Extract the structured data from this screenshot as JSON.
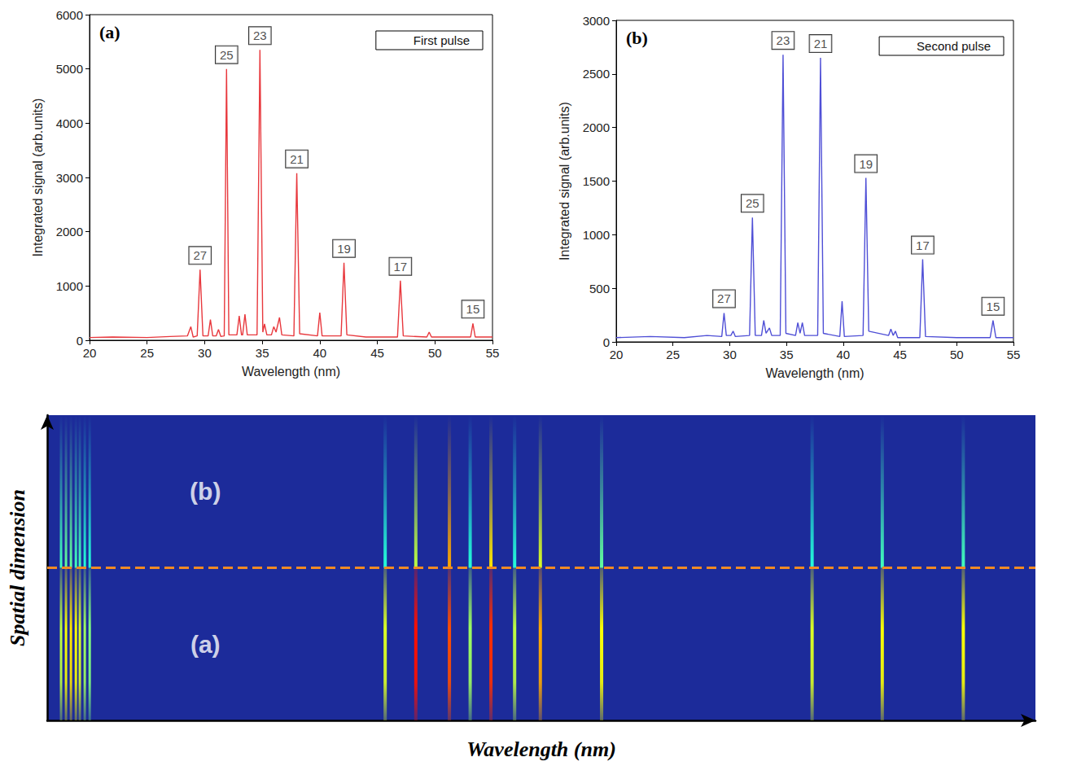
{
  "chart_data": [
    {
      "type": "line",
      "label": "(a)",
      "x_label": "Wavelength (nm)",
      "y_label": "Integrated signal (arb.units)",
      "x": [
        20,
        22,
        25,
        27,
        28.5,
        28.8,
        29.0,
        29.35,
        29.6,
        29.85,
        30.3,
        30.5,
        30.7,
        31.0,
        31.2,
        31.4,
        31.7,
        31.9,
        32.1,
        32.8,
        33.0,
        33.2,
        33.3,
        33.5,
        33.7,
        34.55,
        34.8,
        35.05,
        35.2,
        35.4,
        35.8,
        36.0,
        36.2,
        36.5,
        36.7,
        37.75,
        38.0,
        38.25,
        39.8,
        40.0,
        40.2,
        41.85,
        42.1,
        42.35,
        44.0,
        46.75,
        47.0,
        47.25,
        49.3,
        49.5,
        49.7,
        53.1,
        53.3,
        53.5,
        55
      ],
      "series": [
        {
          "name": "First pulse",
          "color": "#e8383d",
          "values": [
            50,
            60,
            50,
            70,
            80,
            250,
            60,
            80,
            1300,
            80,
            80,
            380,
            80,
            80,
            200,
            70,
            80,
            5000,
            100,
            100,
            450,
            100,
            100,
            480,
            100,
            100,
            5350,
            150,
            300,
            100,
            100,
            250,
            150,
            420,
            100,
            80,
            3080,
            120,
            80,
            510,
            80,
            80,
            1430,
            100,
            60,
            60,
            1100,
            80,
            60,
            150,
            60,
            60,
            310,
            60,
            60
          ]
        }
      ],
      "annotations": [
        {
          "text": "27",
          "x": 29.6,
          "y": 1300
        },
        {
          "text": "25",
          "x": 31.9,
          "y": 5000
        },
        {
          "text": "23",
          "x": 34.8,
          "y": 5350
        },
        {
          "text": "21",
          "x": 38.0,
          "y": 3080
        },
        {
          "text": "19",
          "x": 42.1,
          "y": 1430
        },
        {
          "text": "17",
          "x": 47.0,
          "y": 1100
        },
        {
          "text": "15",
          "x": 53.3,
          "y": 310
        }
      ],
      "xlim": [
        20,
        55
      ],
      "xticks": [
        20,
        25,
        30,
        35,
        40,
        45,
        50,
        55
      ],
      "ylim": [
        0,
        6000
      ],
      "yticks": [
        0,
        1000,
        2000,
        3000,
        4000,
        5000,
        6000
      ],
      "grid": false,
      "legend": "upper right"
    },
    {
      "type": "line",
      "label": "(b)",
      "x_label": "Wavelength (nm)",
      "y_label": "Integrated signal (arb.units)",
      "x": [
        20,
        23,
        26,
        28,
        29.3,
        29.5,
        29.7,
        30.1,
        30.3,
        30.5,
        31.75,
        32.0,
        32.25,
        32.8,
        33.0,
        33.2,
        33.5,
        33.7,
        34.45,
        34.7,
        34.95,
        35.8,
        36.0,
        36.2,
        36.4,
        36.6,
        37.75,
        38.0,
        38.25,
        39.7,
        39.9,
        40.1,
        41.75,
        42.0,
        42.25,
        44.0,
        44.2,
        44.4,
        44.6,
        44.8,
        46.75,
        47.0,
        47.25,
        50,
        52.95,
        53.2,
        53.45,
        55
      ],
      "series": [
        {
          "name": "Second pulse",
          "color": "#4f4fd6",
          "values": [
            40,
            50,
            40,
            60,
            50,
            270,
            60,
            60,
            100,
            50,
            60,
            1160,
            60,
            60,
            200,
            80,
            130,
            60,
            60,
            2680,
            80,
            60,
            180,
            80,
            180,
            60,
            60,
            2650,
            80,
            50,
            380,
            50,
            60,
            1530,
            100,
            60,
            120,
            60,
            100,
            40,
            40,
            770,
            50,
            40,
            40,
            200,
            40,
            40
          ]
        }
      ],
      "annotations": [
        {
          "text": "27",
          "x": 29.5,
          "y": 270
        },
        {
          "text": "25",
          "x": 32.0,
          "y": 1160
        },
        {
          "text": "23",
          "x": 34.7,
          "y": 2680
        },
        {
          "text": "21",
          "x": 38.0,
          "y": 2650
        },
        {
          "text": "19",
          "x": 42.0,
          "y": 1530
        },
        {
          "text": "17",
          "x": 47.0,
          "y": 770
        },
        {
          "text": "15",
          "x": 53.2,
          "y": 200
        }
      ],
      "xlim": [
        20,
        55
      ],
      "xticks": [
        20,
        25,
        30,
        35,
        40,
        45,
        50,
        55
      ],
      "ylim": [
        0,
        3000
      ],
      "yticks": [
        0,
        500,
        1000,
        1500,
        2000,
        2500,
        3000
      ],
      "grid": false,
      "legend": "upper right"
    },
    {
      "type": "heatmap",
      "x_label": "Wavelength (nm)",
      "y_label": "Spatial dimension",
      "xlim": [
        0,
        100
      ],
      "ylim": [
        0,
        2
      ],
      "tick_labels": false,
      "regions": [
        {
          "label": "(a)",
          "range": [
            0,
            1
          ]
        },
        {
          "label": "(b)",
          "range": [
            1,
            2
          ]
        }
      ],
      "intensity_range": [
        0,
        1
      ],
      "lines": {
        "x": [
          1.4,
          1.9,
          2.4,
          2.9,
          3.3,
          3.8,
          4.3,
          34.2,
          37.3,
          40.7,
          42.8,
          44.9,
          47.3,
          49.9,
          56.1,
          77.4,
          84.5,
          92.7
        ],
        "a": [
          0.35,
          0.45,
          0.5,
          0.45,
          0.4,
          0.3,
          0.25,
          0.4,
          0.85,
          0.75,
          0.3,
          0.8,
          0.35,
          0.6,
          0.45,
          0.4,
          0.45,
          0.45
        ],
        "b": [
          0.15,
          0.2,
          0.2,
          0.15,
          0.15,
          0.1,
          0.1,
          0.1,
          0.35,
          0.6,
          0.1,
          0.5,
          0.1,
          0.4,
          0.2,
          0.1,
          0.15,
          0.15
        ]
      }
    }
  ]
}
